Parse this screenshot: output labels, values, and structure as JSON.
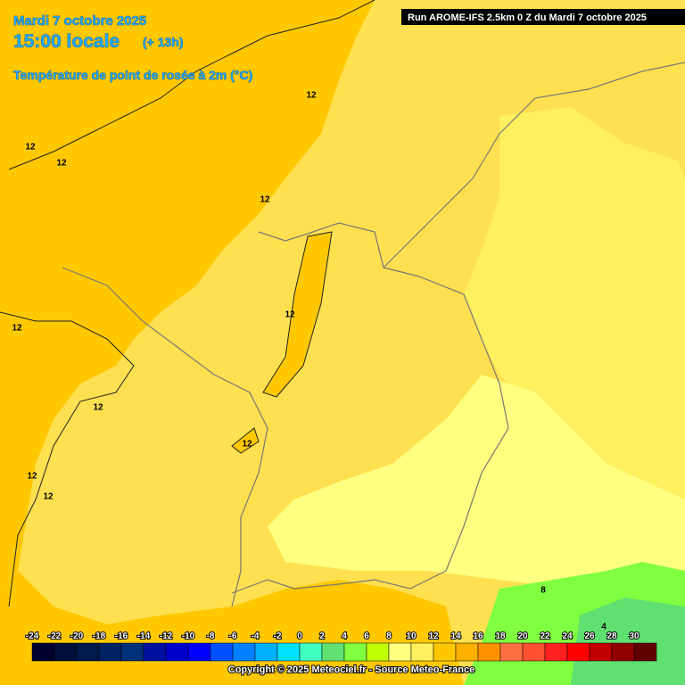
{
  "header": {
    "date": "Mardi 7 octobre 2025",
    "time": "15:00 locale",
    "lead": "(+ 13h)",
    "parameter": "Température de point de rosée à 2m (°C)",
    "run": "Run AROME-IFS 2.5km 0 Z du Mardi 7 octobre 2025"
  },
  "contour_labels": [
    12,
    12,
    12,
    12,
    12,
    12,
    12,
    12,
    12,
    12,
    8,
    4
  ],
  "legend": {
    "labels": [
      -24,
      -22,
      -20,
      -18,
      -16,
      -14,
      -12,
      -10,
      -8,
      -6,
      -4,
      -2,
      0,
      2,
      4,
      6,
      8,
      10,
      12,
      14,
      16,
      18,
      20,
      22,
      24,
      26,
      28,
      30
    ],
    "colors": [
      "#000030",
      "#001038",
      "#001a4c",
      "#002260",
      "#00307a",
      "#0010a0",
      "#0000cc",
      "#0000ff",
      "#0050ff",
      "#0080ff",
      "#00b0ff",
      "#00e0ff",
      "#40ffc0",
      "#60e070",
      "#80ff40",
      "#c0ff00",
      "#ffff80",
      "#fff060",
      "#ffc800",
      "#ffb000",
      "#ff9000",
      "#ff7040",
      "#ff5030",
      "#ff2020",
      "#ff0000",
      "#c00000",
      "#900000",
      "#600000"
    ]
  },
  "footer": {
    "copyright": "Copyright © 2025 Meteociel.fr - Source Meteo-France"
  }
}
